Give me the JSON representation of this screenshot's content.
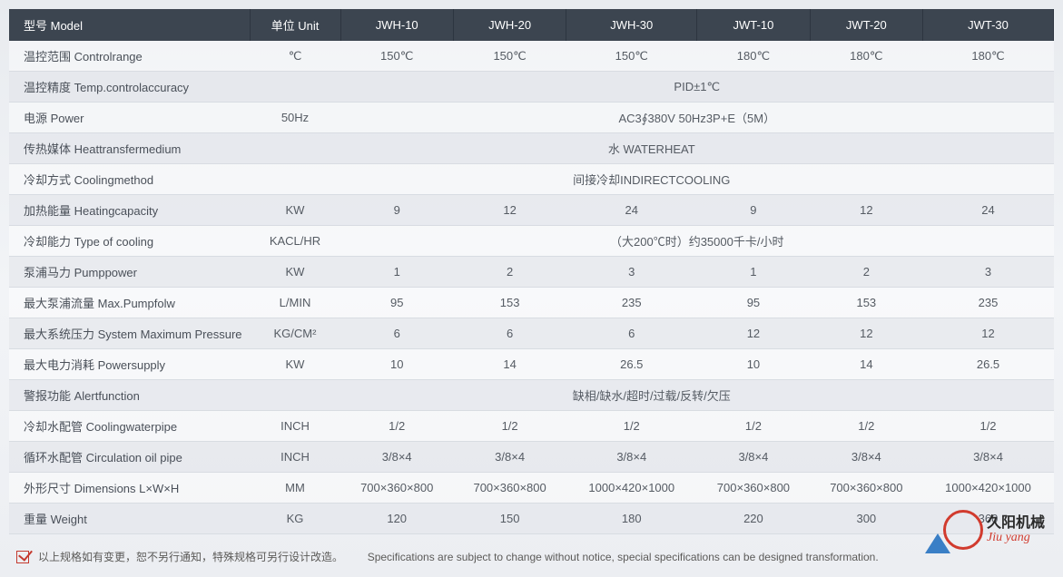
{
  "header": {
    "model": "型号 Model",
    "unit": "单位 Unit",
    "cols": [
      "JWH-10",
      "JWH-20",
      "JWH-30",
      "JWT-10",
      "JWT-20",
      "JWT-30"
    ]
  },
  "rows": [
    {
      "label": "温控范围 Controlrange",
      "unit": "℃",
      "cells": [
        "150℃",
        "150℃",
        "150℃",
        "180℃",
        "180℃",
        "180℃"
      ]
    },
    {
      "label": "温控精度 Temp.controlaccuracy",
      "unit": "",
      "span": "PID±1℃"
    },
    {
      "label": "电源 Power",
      "unit": "50Hz",
      "span": "AC3∮380V 50Hz3P+E（5M）"
    },
    {
      "label": "传热媒体 Heattransfermedium",
      "unit": "",
      "span": "水 WATERHEAT",
      "unitmerge": true
    },
    {
      "label": "冷却方式 Coolingmethod",
      "unit": "",
      "span": "间接冷却INDIRECTCOOLING",
      "unitmerge": true
    },
    {
      "label": "加热能量 Heatingcapacity",
      "unit": "KW",
      "cells": [
        "9",
        "12",
        "24",
        "9",
        "12",
        "24"
      ]
    },
    {
      "label": "冷却能力 Type of cooling",
      "unit": "KACL/HR",
      "span": "（大200℃时）约35000千卡/小时"
    },
    {
      "label": "泵浦马力 Pumppower",
      "unit": "KW",
      "cells": [
        "1",
        "2",
        "3",
        "1",
        "2",
        "3"
      ]
    },
    {
      "label": "最大泵浦流量 Max.Pumpfolw",
      "unit": "L/MIN",
      "cells": [
        "95",
        "153",
        "235",
        "95",
        "153",
        "235"
      ]
    },
    {
      "label": "最大系统压力 System Maximum Pressure",
      "unit": "KG/CM²",
      "cells": [
        "6",
        "6",
        "6",
        "12",
        "12",
        "12"
      ]
    },
    {
      "label": "最大电力消耗 Powersupply",
      "unit": "KW",
      "cells": [
        "10",
        "14",
        "26.5",
        "10",
        "14",
        "26.5"
      ]
    },
    {
      "label": "警报功能 Alertfunction",
      "unit": "",
      "span": "缺相/缺水/超时/过载/反转/欠压",
      "unitmerge": true
    },
    {
      "label": "冷却水配管 Coolingwaterpipe",
      "unit": "INCH",
      "cells": [
        "1/2",
        "1/2",
        "1/2",
        "1/2",
        "1/2",
        "1/2"
      ]
    },
    {
      "label": "循环水配管 Circulation oil pipe",
      "unit": "INCH",
      "cells": [
        "3/8×4",
        "3/8×4",
        "3/8×4",
        "3/8×4",
        "3/8×4",
        "3/8×4"
      ]
    },
    {
      "label": "外形尺寸 Dimensions L×W×H",
      "unit": "MM",
      "cells": [
        "700×360×800",
        "700×360×800",
        "1000×420×1000",
        "700×360×800",
        "700×360×800",
        "1000×420×1000"
      ]
    },
    {
      "label": "重量 Weight",
      "unit": "KG",
      "cells": [
        "120",
        "150",
        "180",
        "220",
        "300",
        "360"
      ]
    }
  ],
  "footnote": {
    "cn": "以上规格如有变更，恕不另行通知，特殊规格可另行设计改造。",
    "en": "Specifications are subject to change without notice, special specifications can be designed transformation."
  },
  "logo": {
    "cn": "久阳机械",
    "en": "Jiu yang"
  },
  "style": {
    "header_bg": "#3c4550",
    "header_fg": "#ffffff",
    "row_odd_bg": "rgba(255,255,255,0.45)",
    "row_even_bg": "rgba(225,228,233,0.55)",
    "border_color": "#d8dce2",
    "text_color": "#555b63",
    "accent_red": "#d13b2e",
    "accent_blue": "#3a7fc6",
    "font_size_pt": 10,
    "header_font_size_pt": 11
  }
}
